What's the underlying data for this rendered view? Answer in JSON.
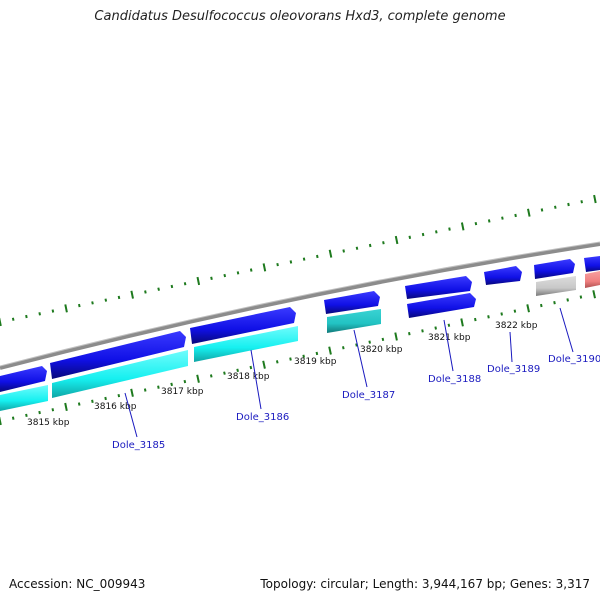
{
  "title": "Candidatus Desulfococcus oleovorans Hxd3, complete genome",
  "footer": {
    "accession": "Accession: NC_009943",
    "summary": "Topology: circular; Length: 3,944,167 bp; Genes: 3,317"
  },
  "colors": {
    "backbone": "#8c8c8c",
    "tick": "#1e7a1e",
    "forward_cds": "#1010e6",
    "reverse_cds": "#16f0f0",
    "reverse_cds_alt": "#22c3c3",
    "grey_feature": "#c8c8c8",
    "pink_feature": "#f08080",
    "label_text": "#1a1abf"
  },
  "kbp_labels": [
    "3815 kbp",
    "3816 kbp",
    "3817 kbp",
    "3818 kbp",
    "3819 kbp",
    "3820 kbp",
    "3821 kbp",
    "3822 kbp"
  ],
  "gene_labels": [
    "Dole_3185",
    "Dole_3186",
    "Dole_3187",
    "Dole_3188",
    "Dole_3189",
    "Dole_3190"
  ]
}
